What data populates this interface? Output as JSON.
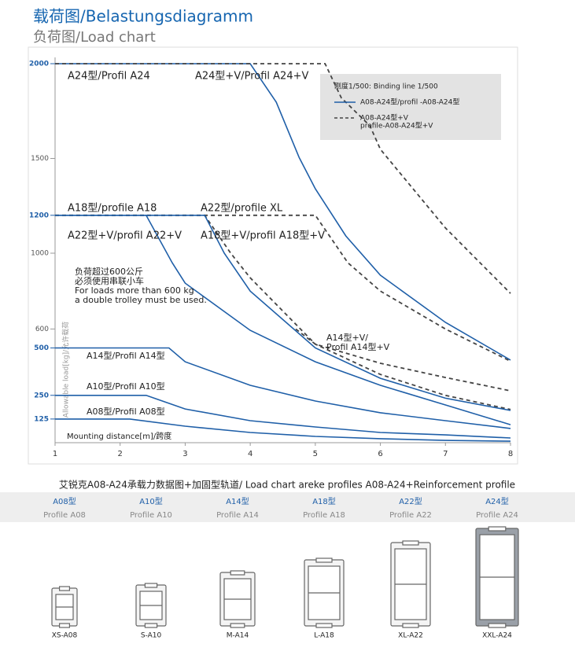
{
  "header": {
    "title": "载荷图/Belastungsdiagramm",
    "subtitle": "负荷图/Load chart"
  },
  "chart_data": {
    "type": "line",
    "xlim": [
      1,
      8
    ],
    "xticks": [
      1,
      2,
      3,
      4,
      5,
      6,
      7,
      8
    ],
    "ylim": [
      0,
      2000
    ],
    "yticks": [
      2000,
      1500,
      1200,
      1000,
      600,
      500,
      250,
      125
    ],
    "y_label": "Allowable load[kg]/允许载荷",
    "x_label": "Mounting distance[m]/跨度",
    "legend": {
      "title": "刚度1/500:  Binding line 1/500",
      "entries": [
        {
          "label": [
            "A08-A24型/profil -A08-A24型"
          ],
          "color": "#1f5fa8",
          "style": "solid"
        },
        {
          "label": [
            "A08-A24型+V",
            "profile-A08-A24型+V"
          ],
          "color": "#444444",
          "style": "dashed"
        }
      ]
    },
    "series": [
      {
        "color": "#1f5fa8",
        "style": "solid",
        "x": [
          1,
          4,
          4.4,
          4.75,
          5,
          5.47,
          6,
          7,
          8
        ],
        "values": [
          2000,
          2000,
          1797,
          1506,
          1340,
          1091,
          884,
          635,
          436
        ]
      },
      {
        "color": "#444444",
        "style": "dashed",
        "x": [
          1,
          5.15,
          5.4,
          5.84,
          6,
          7,
          8
        ],
        "values": [
          2000,
          2000,
          1820,
          1672,
          1548,
          1133,
          788
        ]
      },
      {
        "color": "#444444",
        "style": "dashed",
        "x": [
          1,
          5,
          5.5,
          6,
          7,
          8
        ],
        "values": [
          1200,
          1200,
          950,
          800,
          600,
          430
        ]
      },
      {
        "color": "#444444",
        "style": "dashed",
        "x": [
          1,
          3.3,
          3.7,
          4,
          5,
          6,
          7,
          8
        ],
        "values": [
          1200,
          1200,
          1000,
          870,
          520,
          360,
          250,
          175
        ]
      },
      {
        "color": "#1f5fa8",
        "style": "solid",
        "x": [
          1,
          3.3,
          3.6,
          4,
          5,
          6,
          7,
          8
        ],
        "values": [
          1200,
          1200,
          1000,
          800,
          500,
          340,
          235,
          170
        ]
      },
      {
        "color": "#1f5fa8",
        "style": "solid",
        "x": [
          1,
          2.4,
          2.8,
          3,
          4,
          5,
          6,
          7,
          8
        ],
        "values": [
          1200,
          1200,
          950,
          842,
          593,
          427,
          303,
          199,
          95
        ]
      },
      {
        "color": "#444444",
        "style": "dashed",
        "x": [
          4.7,
          5,
          6,
          7,
          8
        ],
        "values": [
          600,
          520,
          419,
          344,
          274
        ]
      },
      {
        "color": "#1f5fa8",
        "style": "solid",
        "x": [
          1,
          2.75,
          3,
          4,
          5,
          6,
          7,
          8
        ],
        "values": [
          500,
          500,
          427,
          303,
          220,
          158,
          116,
          75
        ]
      },
      {
        "color": "#1f5fa8",
        "style": "solid",
        "x": [
          1,
          2.4,
          3,
          4,
          5,
          6,
          7,
          8
        ],
        "values": [
          250,
          250,
          178,
          116,
          83,
          54,
          41,
          25
        ]
      },
      {
        "color": "#1f5fa8",
        "style": "solid",
        "x": [
          1,
          2.15,
          3,
          4,
          5,
          6,
          7,
          8
        ],
        "values": [
          125,
          125,
          87,
          54,
          33,
          21,
          12,
          8
        ]
      }
    ],
    "annotations": [
      {
        "text": [
          "A24型/Profil A24"
        ]
      },
      {
        "text": [
          "A24型+V/Profil A24+V"
        ]
      },
      {
        "text": [
          "A18型/profile A18"
        ]
      },
      {
        "text": [
          "A22型/profile XL"
        ]
      },
      {
        "text": [
          "A22型+V/profil A22+V"
        ]
      },
      {
        "text": [
          "A18型+V/profil A18型+V"
        ]
      },
      {
        "text": [
          "负荷超过600公斤",
          "必须使用串联小车",
          "For loads more than 600 kg",
          "a double trolley must be used."
        ]
      },
      {
        "text": [
          "A14型+V/",
          "Profil A14型+V"
        ]
      },
      {
        "text": [
          "A14型/Profil A14型"
        ]
      },
      {
        "text": [
          "A10型/Profil A10型"
        ]
      },
      {
        "text": [
          "A08型/Profil A08型"
        ]
      }
    ]
  },
  "caption": "艾锐克A08-A24承载力数据图+加固型轨道/ Load chart areke profiles A08-A24+Reinforcement profile",
  "profiles": [
    {
      "name": "A08型",
      "label": "Profile A08",
      "code": "XS-A08"
    },
    {
      "name": "A10型",
      "label": "Profile A10",
      "code": "S-A10"
    },
    {
      "name": "A14型",
      "label": "Profile A14",
      "code": "M-A14"
    },
    {
      "name": "A18型",
      "label": "Profile A18",
      "code": "L-A18"
    },
    {
      "name": "A22型",
      "label": "Profile A22",
      "code": "XL-A22"
    },
    {
      "name": "A24型",
      "label": "Profile A24",
      "code": "XXL-A24"
    }
  ]
}
